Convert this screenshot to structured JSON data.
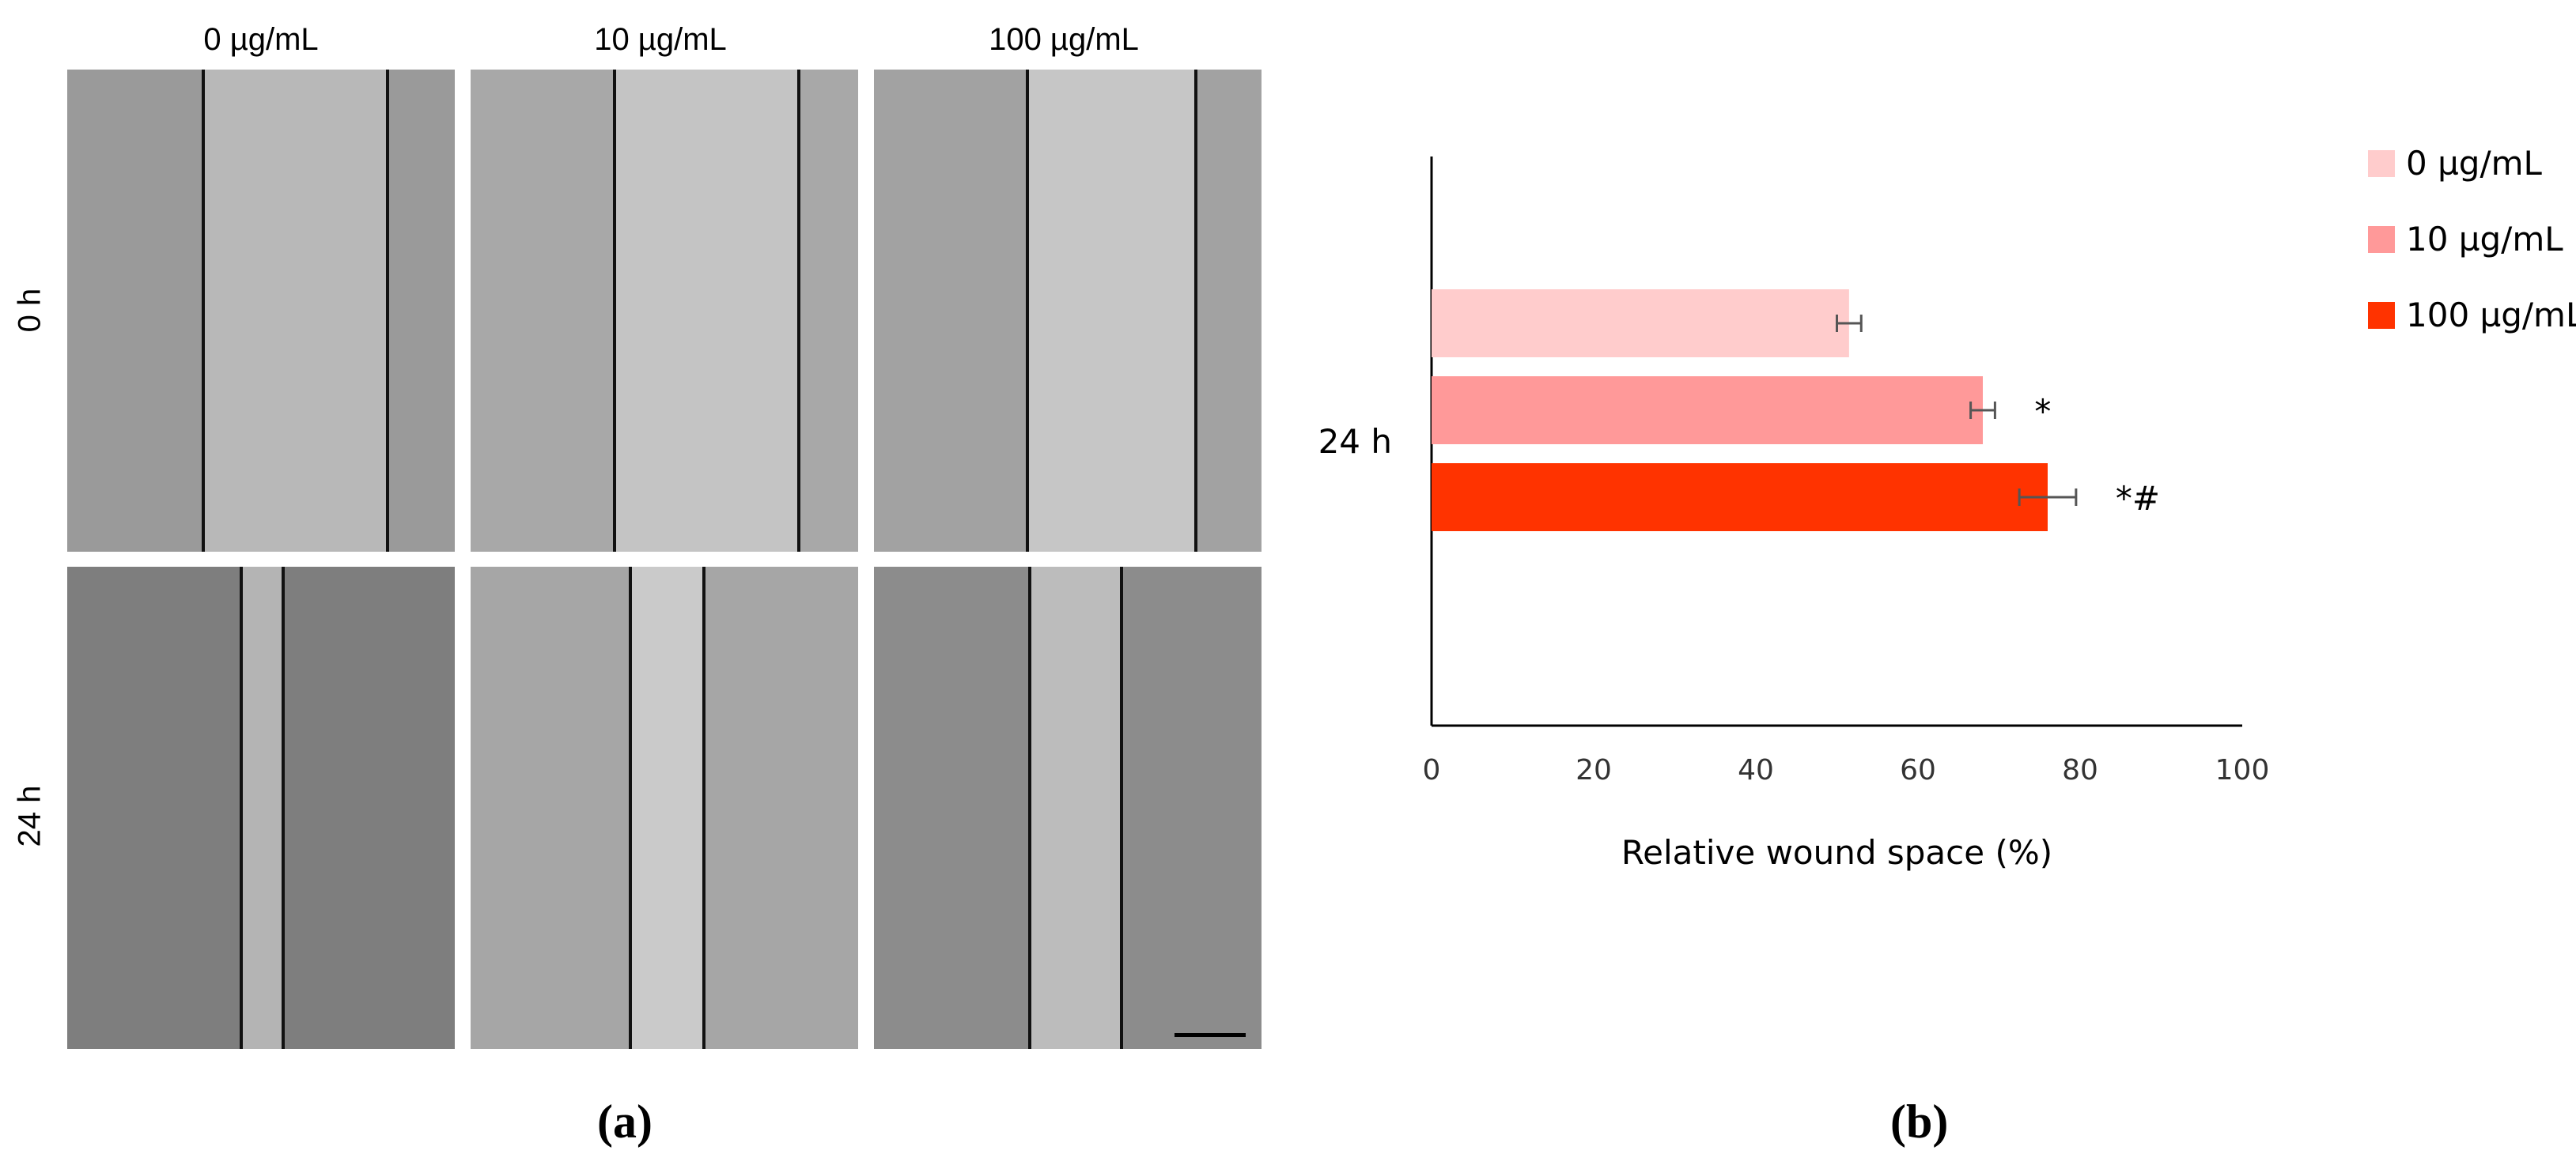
{
  "panel_a": {
    "columns": [
      "0 µg/mL",
      "10 µg/mL",
      "100 µg/mL"
    ],
    "rows": [
      "0 h",
      "24 h"
    ],
    "label": "(a)"
  },
  "panel_b": {
    "label": "(b)"
  },
  "chart_data": {
    "type": "bar",
    "orientation": "horizontal",
    "categories": [
      "24 h"
    ],
    "series": [
      {
        "name": "0 µg/mL",
        "values": [
          51.5
        ],
        "error": [
          1.5
        ],
        "color": "#ffcccc",
        "annotation": ""
      },
      {
        "name": "10 µg/mL",
        "values": [
          68
        ],
        "error": [
          1.5
        ],
        "color": "#ff9999",
        "annotation": "*"
      },
      {
        "name": "100 µg/mL",
        "values": [
          76
        ],
        "error": [
          3.5
        ],
        "color": "#ff3300",
        "annotation": "*#"
      }
    ],
    "xlabel": "Relative wound space (%)",
    "ylabel": "",
    "xlim": [
      0,
      100
    ],
    "xticks": [
      0,
      20,
      40,
      60,
      80,
      100
    ],
    "legend_position": "right",
    "grid": false
  }
}
